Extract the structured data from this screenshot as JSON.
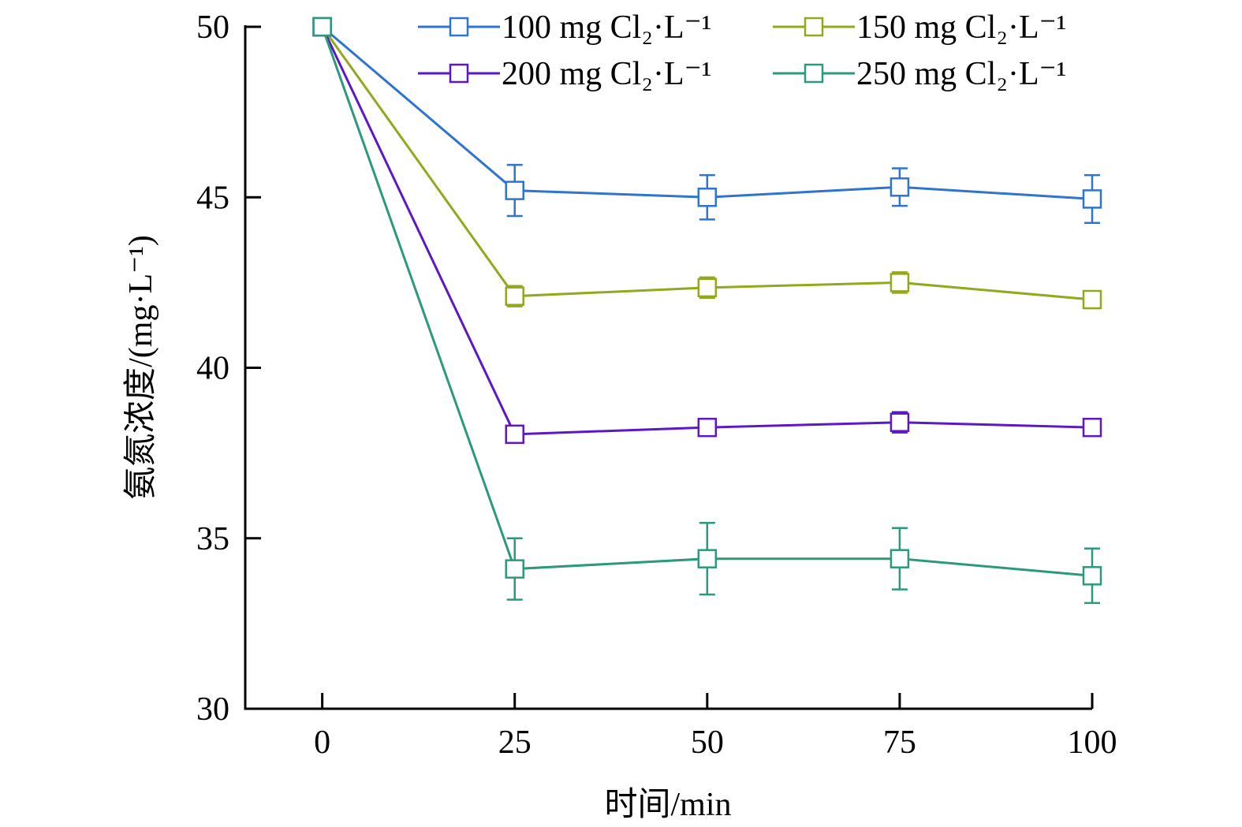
{
  "chart_data": {
    "type": "line",
    "xlabel": "时间/min",
    "ylabel": "氨氮浓度/(mg·L⁻¹)",
    "xlim": [
      -10,
      100
    ],
    "ylim": [
      30,
      50
    ],
    "xticks": [
      0,
      25,
      50,
      75,
      100
    ],
    "yticks": [
      30,
      35,
      40,
      45,
      50
    ],
    "grid": false,
    "legend_position": "top-right",
    "marker": "square-open",
    "x": [
      0,
      25,
      50,
      75,
      100
    ],
    "series": [
      {
        "name": "100 mg Cl₂·L⁻¹",
        "color": "#2f74d0",
        "values": [
          50,
          45.2,
          45.0,
          45.3,
          44.95
        ],
        "errors": [
          0,
          0.75,
          0.65,
          0.55,
          0.7
        ]
      },
      {
        "name": "150 mg Cl₂·L⁻¹",
        "color": "#94a81c",
        "values": [
          50,
          42.1,
          42.35,
          42.5,
          42.0
        ],
        "errors": [
          0,
          0.3,
          0.3,
          0.3,
          0.25
        ]
      },
      {
        "name": "200 mg Cl₂·L⁻¹",
        "color": "#5c17c9",
        "values": [
          50,
          38.05,
          38.25,
          38.4,
          38.25
        ],
        "errors": [
          0,
          0.2,
          0.2,
          0.3,
          0.2
        ]
      },
      {
        "name": "250 mg Cl₂·L⁻¹",
        "color": "#2b9a7c",
        "values": [
          50,
          34.1,
          34.4,
          34.4,
          33.9
        ],
        "errors": [
          0,
          0.9,
          1.05,
          0.9,
          0.8
        ]
      }
    ]
  }
}
